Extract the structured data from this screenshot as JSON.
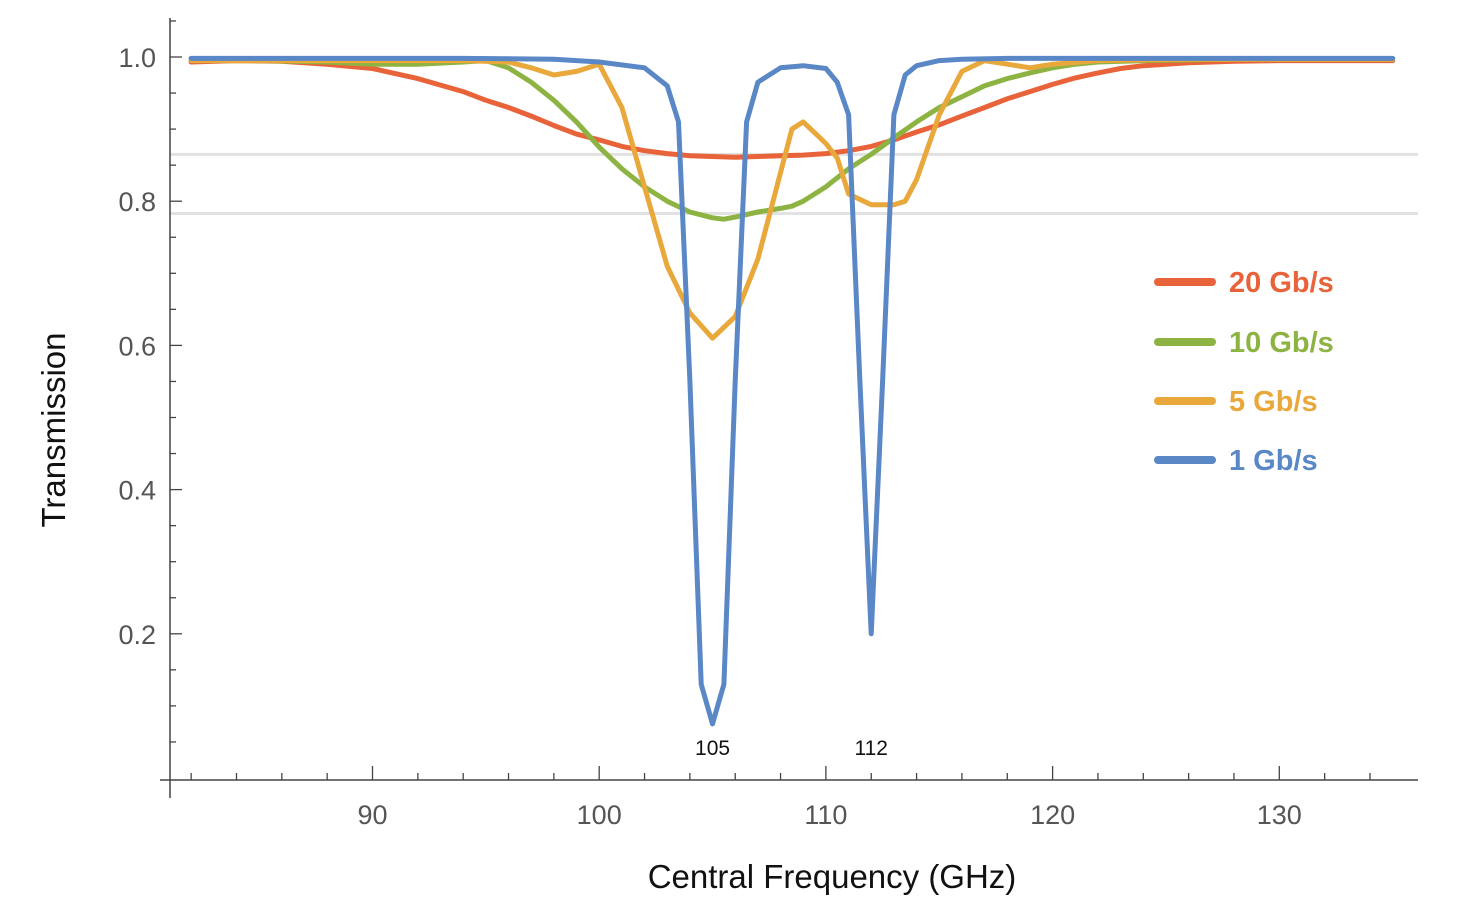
{
  "chart_data": {
    "type": "line",
    "title": "",
    "xlabel": "Central Frequency (GHz)",
    "ylabel": "Transmission",
    "xlim": [
      81.5,
      135.9
    ],
    "ylim": [
      0.0,
      1.05
    ],
    "x_ticks": [
      90,
      100,
      110,
      120,
      130
    ],
    "y_ticks": [
      0.2,
      0.4,
      0.6,
      0.8,
      1.0
    ],
    "y_tick_labels": [
      "0.2",
      "0.4",
      "0.6",
      "0.8",
      "1.0"
    ],
    "grid": false,
    "reference_lines_y": [
      0.865,
      0.783
    ],
    "annotations": [
      {
        "text": "105",
        "x": 105,
        "y": 0.04
      },
      {
        "text": "112",
        "x": 112,
        "y": 0.04
      }
    ],
    "legend_position": "right",
    "series": [
      {
        "name": "20 Gb/s",
        "color": "#E8623A",
        "x": [
          82,
          84,
          86,
          88,
          90,
          92,
          94,
          95,
          96,
          97,
          98,
          99,
          100,
          101,
          102,
          103,
          104,
          105,
          106,
          107,
          108,
          109,
          110,
          111,
          112,
          113,
          114,
          115,
          116,
          117,
          118,
          119,
          120,
          121,
          122,
          123,
          124,
          126,
          128,
          130,
          132,
          135
        ],
        "y": [
          0.993,
          0.995,
          0.994,
          0.99,
          0.984,
          0.97,
          0.952,
          0.94,
          0.93,
          0.918,
          0.905,
          0.893,
          0.885,
          0.876,
          0.87,
          0.866,
          0.863,
          0.862,
          0.861,
          0.862,
          0.863,
          0.864,
          0.866,
          0.87,
          0.876,
          0.885,
          0.896,
          0.906,
          0.918,
          0.93,
          0.942,
          0.952,
          0.962,
          0.971,
          0.978,
          0.984,
          0.988,
          0.992,
          0.994,
          0.995,
          0.995,
          0.995
        ]
      },
      {
        "name": "10 Gb/s",
        "color": "#8DB342",
        "x": [
          82,
          85,
          88,
          90,
          92,
          94,
          95,
          96,
          97,
          98,
          99,
          100,
          101,
          102,
          103,
          104,
          105,
          105.5,
          106,
          107,
          108,
          108.5,
          109,
          110,
          111,
          112,
          113,
          114,
          115,
          116,
          117,
          118,
          119,
          120,
          121,
          122,
          124,
          126,
          128,
          130,
          132,
          135
        ],
        "y": [
          0.995,
          0.995,
          0.993,
          0.99,
          0.99,
          0.993,
          0.995,
          0.985,
          0.965,
          0.94,
          0.91,
          0.875,
          0.845,
          0.82,
          0.8,
          0.785,
          0.777,
          0.775,
          0.778,
          0.785,
          0.79,
          0.793,
          0.8,
          0.82,
          0.845,
          0.865,
          0.888,
          0.91,
          0.93,
          0.945,
          0.96,
          0.97,
          0.978,
          0.985,
          0.99,
          0.993,
          0.995,
          0.996,
          0.997,
          0.997,
          0.997,
          0.997
        ]
      },
      {
        "name": "5 Gb/s",
        "color": "#E9A83B",
        "x": [
          82,
          86,
          90,
          94,
          96,
          97,
          98,
          99,
          100,
          101,
          102,
          103,
          104,
          105,
          106,
          107,
          108,
          108.5,
          109,
          110,
          110.5,
          111,
          112,
          113,
          113.5,
          114,
          115,
          116,
          117,
          118,
          119,
          120,
          122,
          124,
          126,
          128,
          130,
          132,
          135
        ],
        "y": [
          0.995,
          0.995,
          0.995,
          0.995,
          0.993,
          0.985,
          0.975,
          0.98,
          0.99,
          0.93,
          0.82,
          0.71,
          0.645,
          0.61,
          0.64,
          0.72,
          0.84,
          0.9,
          0.91,
          0.88,
          0.86,
          0.81,
          0.795,
          0.795,
          0.8,
          0.83,
          0.92,
          0.98,
          0.995,
          0.99,
          0.985,
          0.99,
          0.995,
          0.996,
          0.997,
          0.997,
          0.997,
          0.997,
          0.997
        ]
      },
      {
        "name": "1 Gb/s",
        "color": "#5A87C5",
        "x": [
          82,
          86,
          90,
          94,
          98,
          100,
          102,
          103,
          103.5,
          104,
          104.5,
          105,
          105.5,
          106,
          106.5,
          107,
          108,
          109,
          110,
          110.5,
          111,
          111.5,
          112,
          112.5,
          113,
          113.5,
          114,
          115,
          116,
          118,
          120,
          124,
          128,
          132,
          135
        ],
        "y": [
          0.998,
          0.998,
          0.998,
          0.998,
          0.997,
          0.993,
          0.985,
          0.96,
          0.91,
          0.55,
          0.13,
          0.075,
          0.13,
          0.55,
          0.91,
          0.965,
          0.985,
          0.988,
          0.984,
          0.965,
          0.92,
          0.55,
          0.2,
          0.55,
          0.92,
          0.975,
          0.988,
          0.995,
          0.997,
          0.998,
          0.998,
          0.998,
          0.998,
          0.998,
          0.998
        ]
      }
    ]
  }
}
